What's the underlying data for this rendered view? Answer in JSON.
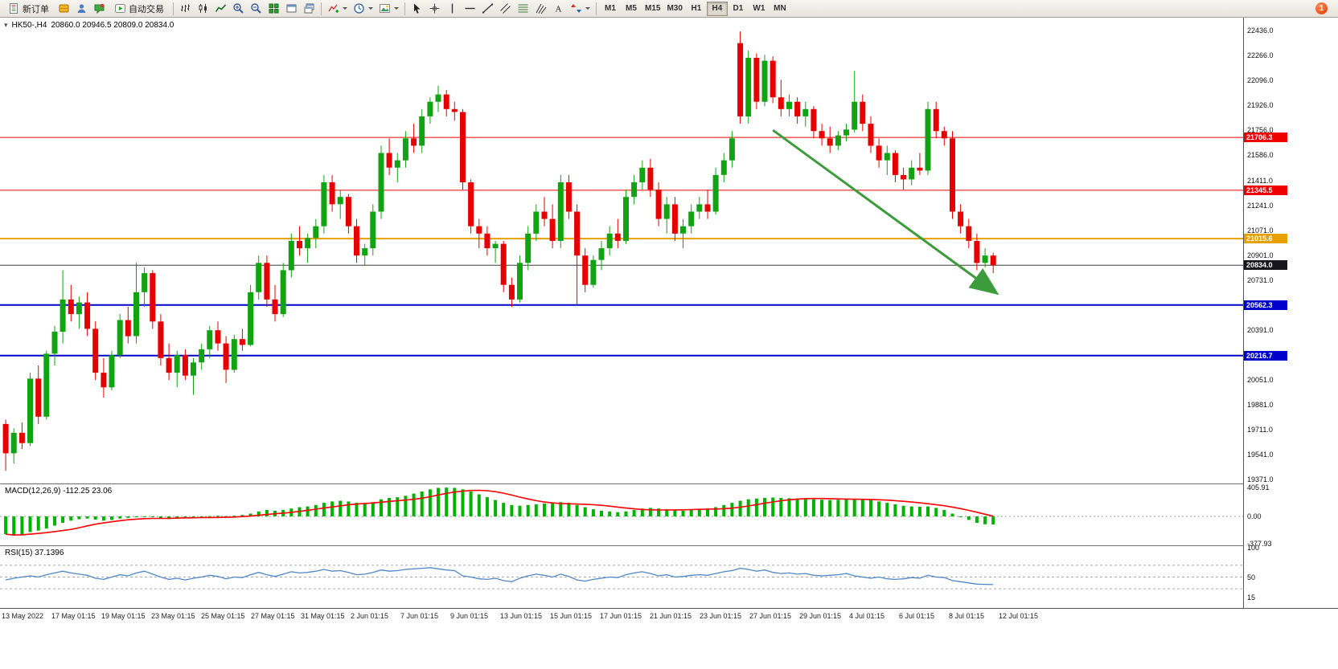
{
  "toolbar": {
    "new_order_label": "新订单",
    "autotrading_label": "自动交易",
    "timeframes": [
      "M1",
      "M5",
      "M15",
      "M30",
      "H1",
      "H4",
      "D1",
      "W1",
      "MN"
    ],
    "active_timeframe": "H4",
    "notification_badge": "1",
    "icons": {
      "new_order": "document",
      "coins": "gold-box",
      "user": "person",
      "chat": "speech-bubble",
      "autotrading": "play-triangle",
      "bar_chart": "ohlc-bars",
      "candles": "candlesticks",
      "line_chart": "zigzag",
      "zoom_in": "magnifier-plus",
      "zoom_out": "magnifier-minus",
      "tile_windows": "grid-2x2",
      "window": "window",
      "cascade": "stacked-windows",
      "indicators": "chart-plus",
      "periods": "clock",
      "templates": "picture",
      "cursor": "pointer-arrow",
      "crosshair": "crosshair",
      "vertical_line": "|",
      "horizontal_line": "-",
      "trendline": "/",
      "channel": "parallel-lines",
      "fibonacci": "fib-lines",
      "pitchfork": "three-lines",
      "text": "A",
      "arrows": "up-down-arrows"
    }
  },
  "chart": {
    "one_click_glyph": "▾",
    "symbol_text": "HK50-,H4",
    "ohlc_text": "20860.0 20946.5 20809.0 20834.0"
  },
  "price_axis": {
    "top_price": 22524,
    "bottom_price": 19344,
    "ticks": [
      "22436.0",
      "22266.0",
      "22096.0",
      "21926.0",
      "21756.0",
      "21586.0",
      "21411.0",
      "21241.0",
      "21071.0",
      "20901.0",
      "20731.0",
      "20561.0",
      "20391.0",
      "20221.0",
      "20051.0",
      "19881.0",
      "19711.0",
      "19541.0",
      "19371.0"
    ]
  },
  "price_lines": [
    {
      "label": "21706.3",
      "value": 21706.3,
      "color": "#ef0000",
      "width": 1
    },
    {
      "label": "21345.5",
      "value": 21345.5,
      "color": "#ef0000",
      "width": 1
    },
    {
      "label": "21015.6",
      "value": 21015.6,
      "color": "#e8a000",
      "width": 2
    },
    {
      "label": "20834.0",
      "value": 20834.0,
      "color": "#3c3c3c",
      "width": 1,
      "tag_color": "#16161c"
    },
    {
      "label": "20562.3",
      "value": 20562.3,
      "color": "#0000cc",
      "width": 2
    },
    {
      "label": "20216.7",
      "value": 20216.7,
      "color": "#0000cc",
      "width": 2
    }
  ],
  "time_axis": {
    "labels": [
      "13 May 2022",
      "17 May 01:15",
      "19 May 01:15",
      "23 May 01:15",
      "25 May 01:15",
      "27 May 01:15",
      "31 May 01:15",
      "2 Jun 01:15",
      "7 Jun 01:15",
      "9 Jun 01:15",
      "13 Jun 01:15",
      "15 Jun 01:15",
      "17 Jun 01:15",
      "21 Jun 01:15",
      "23 Jun 01:15",
      "27 Jun 01:15",
      "29 Jun 01:15",
      "4 Jul 01:15",
      "6 Jul 01:15",
      "8 Jul 01:15",
      "12 Jul 01:15"
    ]
  },
  "chart_data": {
    "type": "candlestick",
    "symbol": "HK50-",
    "period": "H4",
    "up_color": "#12a312",
    "down_color": "#e60000",
    "candles": [
      [
        19750,
        19780,
        19430,
        19550
      ],
      [
        19550,
        19720,
        19480,
        19690
      ],
      [
        19690,
        19760,
        19580,
        19620
      ],
      [
        19620,
        20100,
        19600,
        20060
      ],
      [
        20060,
        20150,
        19750,
        19800
      ],
      [
        19800,
        20250,
        19780,
        20230
      ],
      [
        20230,
        20420,
        20150,
        20380
      ],
      [
        20380,
        20800,
        20300,
        20600
      ],
      [
        20600,
        20700,
        20450,
        20500
      ],
      [
        20500,
        20620,
        20400,
        20580
      ],
      [
        20580,
        20650,
        20350,
        20400
      ],
      [
        20400,
        20450,
        20050,
        20100
      ],
      [
        20100,
        20200,
        19930,
        20000
      ],
      [
        20000,
        20250,
        19980,
        20220
      ],
      [
        20220,
        20500,
        20200,
        20460
      ],
      [
        20460,
        20550,
        20300,
        20350
      ],
      [
        20350,
        20850,
        20300,
        20650
      ],
      [
        20650,
        20820,
        20550,
        20780
      ],
      [
        20780,
        20800,
        20400,
        20450
      ],
      [
        20450,
        20500,
        20150,
        20200
      ],
      [
        20200,
        20300,
        20050,
        20100
      ],
      [
        20100,
        20250,
        20000,
        20220
      ],
      [
        20220,
        20260,
        20050,
        20080
      ],
      [
        20080,
        20200,
        19950,
        20170
      ],
      [
        20170,
        20300,
        20120,
        20260
      ],
      [
        20260,
        20420,
        20200,
        20390
      ],
      [
        20390,
        20450,
        20250,
        20300
      ],
      [
        20300,
        20350,
        20030,
        20120
      ],
      [
        20120,
        20360,
        20100,
        20330
      ],
      [
        20330,
        20400,
        20250,
        20290
      ],
      [
        20290,
        20700,
        20280,
        20650
      ],
      [
        20650,
        20900,
        20600,
        20850
      ],
      [
        20850,
        20900,
        20550,
        20600
      ],
      [
        20600,
        20700,
        20450,
        20500
      ],
      [
        20500,
        20850,
        20480,
        20800
      ],
      [
        20800,
        21050,
        20750,
        21000
      ],
      [
        21000,
        21100,
        20900,
        20950
      ],
      [
        20950,
        21050,
        20850,
        21020
      ],
      [
        21020,
        21150,
        20950,
        21100
      ],
      [
        21100,
        21450,
        21050,
        21400
      ],
      [
        21400,
        21450,
        21200,
        21250
      ],
      [
        21250,
        21350,
        21150,
        21300
      ],
      [
        21300,
        21320,
        21050,
        21100
      ],
      [
        21100,
        21150,
        20850,
        20900
      ],
      [
        20900,
        20980,
        20830,
        20950
      ],
      [
        20950,
        21250,
        20900,
        21200
      ],
      [
        21200,
        21650,
        21150,
        21600
      ],
      [
        21600,
        21700,
        21450,
        21500
      ],
      [
        21500,
        21600,
        21400,
        21550
      ],
      [
        21550,
        21750,
        21500,
        21700
      ],
      [
        21700,
        21800,
        21600,
        21650
      ],
      [
        21650,
        21900,
        21600,
        21850
      ],
      [
        21850,
        21980,
        21800,
        21950
      ],
      [
        21950,
        22060,
        21880,
        22000
      ],
      [
        22000,
        22030,
        21850,
        21900
      ],
      [
        21900,
        21950,
        21820,
        21880
      ],
      [
        21880,
        21900,
        21350,
        21400
      ],
      [
        21400,
        21420,
        21050,
        21100
      ],
      [
        21100,
        21150,
        20950,
        21050
      ],
      [
        21050,
        21100,
        20900,
        20950
      ],
      [
        20950,
        21000,
        20850,
        20980
      ],
      [
        20980,
        21000,
        20650,
        20700
      ],
      [
        20700,
        20750,
        20550,
        20600
      ],
      [
        20600,
        20900,
        20580,
        20850
      ],
      [
        20850,
        21100,
        20800,
        21050
      ],
      [
        21050,
        21250,
        21000,
        21200
      ],
      [
        21200,
        21300,
        21100,
        21150
      ],
      [
        21150,
        21250,
        20950,
        21000
      ],
      [
        21000,
        21450,
        20950,
        21400
      ],
      [
        21400,
        21450,
        21150,
        21200
      ],
      [
        21200,
        21250,
        20560,
        20900
      ],
      [
        20900,
        20950,
        20650,
        20700
      ],
      [
        20700,
        20900,
        20680,
        20870
      ],
      [
        20870,
        21000,
        20800,
        20950
      ],
      [
        20950,
        21100,
        20900,
        21050
      ],
      [
        21050,
        21150,
        20950,
        21000
      ],
      [
        21000,
        21350,
        20980,
        21300
      ],
      [
        21300,
        21450,
        21250,
        21400
      ],
      [
        21400,
        21550,
        21350,
        21500
      ],
      [
        21500,
        21560,
        21300,
        21350
      ],
      [
        21350,
        21400,
        21100,
        21150
      ],
      [
        21150,
        21300,
        21050,
        21250
      ],
      [
        21250,
        21300,
        21000,
        21050
      ],
      [
        21050,
        21150,
        20950,
        21100
      ],
      [
        21100,
        21250,
        21050,
        21200
      ],
      [
        21200,
        21300,
        21150,
        21250
      ],
      [
        21250,
        21350,
        21150,
        21200
      ],
      [
        21200,
        21500,
        21180,
        21450
      ],
      [
        21450,
        21600,
        21400,
        21550
      ],
      [
        21550,
        21750,
        21500,
        21700
      ],
      [
        22350,
        22430,
        21800,
        21850
      ],
      [
        21850,
        22300,
        21800,
        22250
      ],
      [
        22250,
        22280,
        21900,
        21950
      ],
      [
        21950,
        22270,
        21920,
        22230
      ],
      [
        22230,
        22260,
        21940,
        21980
      ],
      [
        21980,
        22100,
        21850,
        21900
      ],
      [
        21900,
        22000,
        21850,
        21950
      ],
      [
        21950,
        21980,
        21800,
        21850
      ],
      [
        21850,
        21950,
        21780,
        21900
      ],
      [
        21900,
        21920,
        21700,
        21750
      ],
      [
        21750,
        21800,
        21650,
        21700
      ],
      [
        21700,
        21780,
        21600,
        21650
      ],
      [
        21650,
        21750,
        21620,
        21720
      ],
      [
        21720,
        21800,
        21680,
        21760
      ],
      [
        21760,
        22160,
        21740,
        21950
      ],
      [
        21950,
        22000,
        21750,
        21800
      ],
      [
        21800,
        21850,
        21600,
        21650
      ],
      [
        21650,
        21700,
        21500,
        21550
      ],
      [
        21550,
        21650,
        21450,
        21600
      ],
      [
        21600,
        21620,
        21400,
        21450
      ],
      [
        21450,
        21500,
        21350,
        21420
      ],
      [
        21420,
        21550,
        21380,
        21500
      ],
      [
        21500,
        21600,
        21450,
        21480
      ],
      [
        21480,
        21950,
        21450,
        21900
      ],
      [
        21900,
        21950,
        21700,
        21750
      ],
      [
        21750,
        21780,
        21650,
        21700
      ],
      [
        21700,
        21750,
        21150,
        21200
      ],
      [
        21200,
        21250,
        21050,
        21100
      ],
      [
        21100,
        21150,
        20950,
        21000
      ],
      [
        21000,
        21050,
        20800,
        20850
      ],
      [
        20850,
        20950,
        20820,
        20900
      ],
      [
        20900,
        20920,
        20780,
        20834
      ]
    ],
    "macd": {
      "label": "MACD(12,26,9)",
      "value_text": "-112.25 23.06",
      "axis": [
        "405.91",
        "0.00",
        "-377.93"
      ],
      "histogram_color": "#00b300",
      "signal_color": "#ff0000",
      "values": [
        -250,
        -270,
        -255,
        -220,
        -200,
        -170,
        -130,
        -90,
        -60,
        -40,
        -30,
        -45,
        -60,
        -50,
        -30,
        -20,
        -10,
        0,
        -10,
        -25,
        -35,
        -30,
        -25,
        -15,
        -5,
        5,
        10,
        5,
        10,
        20,
        40,
        70,
        90,
        80,
        90,
        110,
        130,
        140,
        160,
        190,
        210,
        220,
        210,
        190,
        180,
        200,
        240,
        260,
        270,
        290,
        320,
        350,
        380,
        400,
        405,
        400,
        380,
        350,
        310,
        270,
        230,
        190,
        160,
        150,
        160,
        170,
        180,
        190,
        200,
        190,
        160,
        130,
        100,
        80,
        70,
        60,
        70,
        90,
        110,
        120,
        110,
        100,
        90,
        80,
        90,
        100,
        110,
        130,
        160,
        190,
        220,
        240,
        250,
        260,
        265,
        260,
        255,
        250,
        245,
        240,
        235,
        230,
        235,
        240,
        245,
        240,
        230,
        210,
        190,
        170,
        150,
        140,
        135,
        140,
        120,
        90,
        40,
        0,
        -50,
        -90,
        -110,
        -112.25
      ]
    },
    "rsi": {
      "label": "RSI(15)",
      "value_text": "37.1396",
      "axis": [
        "100",
        "50",
        "15"
      ],
      "levels": [
        70,
        50,
        30
      ],
      "line_color": "#4f87c7",
      "values": [
        45,
        48,
        50,
        52,
        50,
        54,
        57,
        60,
        57,
        55,
        53,
        48,
        46,
        50,
        54,
        52,
        57,
        60,
        55,
        50,
        46,
        48,
        45,
        48,
        50,
        53,
        51,
        47,
        50,
        49,
        54,
        58,
        54,
        51,
        55,
        59,
        57,
        58,
        60,
        63,
        60,
        61,
        58,
        54,
        55,
        58,
        62,
        60,
        61,
        63,
        64,
        65,
        66,
        64,
        62,
        61,
        52,
        50,
        47,
        46,
        48,
        44,
        42,
        48,
        52,
        55,
        53,
        50,
        55,
        51,
        45,
        43,
        46,
        48,
        50,
        49,
        54,
        57,
        59,
        56,
        52,
        54,
        50,
        51,
        53,
        54,
        53,
        56,
        59,
        61,
        65,
        63,
        60,
        62,
        58,
        56,
        57,
        55,
        56,
        53,
        52,
        53,
        54,
        56,
        52,
        50,
        48,
        50,
        47,
        46,
        47,
        49,
        48,
        53,
        50,
        49,
        44,
        42,
        40,
        38,
        37.5,
        37.14
      ]
    }
  },
  "annotations": {
    "arrow": {
      "from_index": 94,
      "from_price": 21756,
      "to_index": 121,
      "to_price": 20660,
      "color": "#3c9c3c"
    }
  }
}
